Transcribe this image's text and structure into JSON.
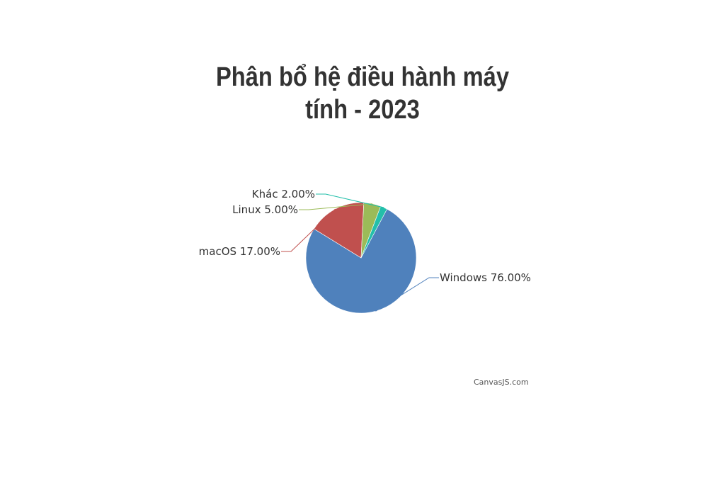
{
  "chart_data": {
    "type": "pie",
    "title_lines": [
      "Phân bổ hệ điều hành máy",
      "tính - 2023"
    ],
    "slices": [
      {
        "label": "Windows",
        "value": 76.0,
        "display": "Windows 76.00%",
        "color": "#4f81bc"
      },
      {
        "label": "macOS",
        "value": 17.0,
        "display": "macOS 17.00%",
        "color": "#c0504e"
      },
      {
        "label": "Linux",
        "value": 5.0,
        "display": "Linux 5.00%",
        "color": "#9bbb58"
      },
      {
        "label": "Khác",
        "value": 2.0,
        "display": "Khác 2.00%",
        "color": "#23bfaa"
      }
    ]
  },
  "credit": "CanvasJS.com"
}
